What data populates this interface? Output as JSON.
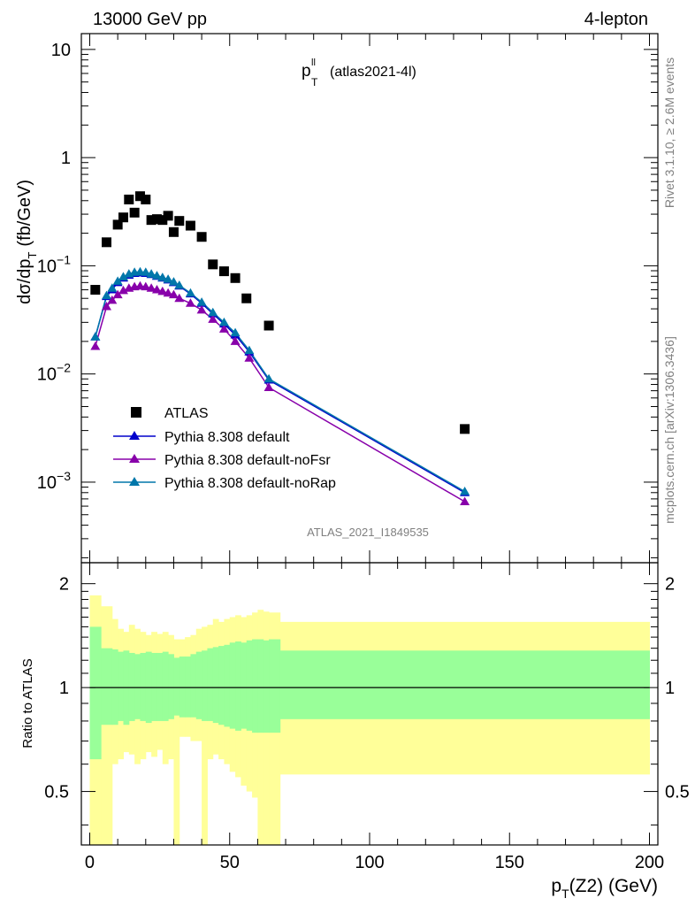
{
  "header": {
    "left": "13000 GeV pp",
    "right": "4-lepton"
  },
  "plot_title": {
    "main": "p",
    "sup": "ll",
    "sub": "T",
    "paren": "(atlas2021-4l)"
  },
  "side_text": {
    "top": "Rivet 3.1.10, ≥ 2.6M events",
    "bottom": "mcplots.cern.ch [arXiv:1306.3436]"
  },
  "watermark": "ATLAS_2021_I1849535",
  "ylabel_main": {
    "pre": "dσ/dp",
    "sub": "T",
    "post": "(fb/GeV)"
  },
  "ylabel_ratio": "Ratio to ATLAS",
  "xlabel": {
    "pre": "p",
    "sub": "T",
    "post": "(Z2) (GeV)"
  },
  "legend": {
    "items": [
      {
        "label": "ATLAS",
        "marker": "square",
        "color": "#000000"
      },
      {
        "label": "Pythia 8.308 default",
        "marker": "triangle",
        "color": "#0000cc"
      },
      {
        "label": "Pythia 8.308 default-noFsr",
        "marker": "triangle",
        "color": "#8800aa"
      },
      {
        "label": "Pythia 8.308 default-noRap",
        "marker": "triangle",
        "color": "#0077aa"
      }
    ]
  },
  "x_ticks": [
    "0",
    "50",
    "100",
    "150",
    "200"
  ],
  "y_ticks_main": [
    {
      "value": 10,
      "base": "10",
      "exp": ""
    },
    {
      "value": 1,
      "base": "1",
      "exp": ""
    },
    {
      "value": 0.1,
      "base": "10",
      "exp": "−1"
    },
    {
      "value": 0.01,
      "base": "10",
      "exp": "−2"
    },
    {
      "value": 0.001,
      "base": "10",
      "exp": "−3"
    }
  ],
  "y_ticks_ratio": [
    "2",
    "1",
    "0.5"
  ],
  "colors": {
    "band_outer": "#ffff99",
    "band_inner": "#99ff99",
    "atlas": "#000000",
    "default": "#0000cc",
    "noFsr": "#8800aa",
    "noRap": "#0077aa"
  },
  "chart_data": {
    "type": "scatter",
    "xlim": [
      -3,
      203
    ],
    "ylim_main": [
      0.00018,
      14
    ],
    "ylim_ratio": [
      0.35,
      2.3
    ],
    "x_log": false,
    "y_log_main": true,
    "y_log_ratio": true,
    "atlas_points": {
      "x": [
        2,
        6,
        10,
        12,
        14,
        16,
        18,
        20,
        22,
        24,
        26,
        28,
        30,
        32,
        36,
        40,
        44,
        48,
        52,
        56,
        64,
        134
      ],
      "y": [
        0.06,
        0.165,
        0.24,
        0.28,
        0.41,
        0.31,
        0.44,
        0.41,
        0.265,
        0.27,
        0.265,
        0.29,
        0.205,
        0.26,
        0.235,
        0.185,
        0.103,
        0.089,
        0.077,
        0.05,
        0.028,
        0.0031
      ]
    },
    "series": [
      {
        "name": "Pythia 8.308 default",
        "x": [
          2,
          6,
          8,
          10,
          12,
          14,
          16,
          18,
          20,
          22,
          24,
          26,
          28,
          30,
          32,
          36,
          40,
          44,
          48,
          52,
          57,
          64,
          134
        ],
        "y": [
          0.022,
          0.052,
          0.06,
          0.07,
          0.077,
          0.082,
          0.085,
          0.086,
          0.085,
          0.083,
          0.08,
          0.077,
          0.074,
          0.07,
          0.065,
          0.055,
          0.045,
          0.036,
          0.029,
          0.023,
          0.016,
          0.0088,
          0.0008
        ]
      },
      {
        "name": "Pythia 8.308 default-noFsr",
        "x": [
          2,
          6,
          8,
          10,
          12,
          14,
          16,
          18,
          20,
          22,
          24,
          26,
          28,
          30,
          32,
          36,
          40,
          44,
          48,
          52,
          57,
          64,
          134
        ],
        "y": [
          0.018,
          0.042,
          0.048,
          0.054,
          0.059,
          0.062,
          0.064,
          0.065,
          0.064,
          0.062,
          0.06,
          0.058,
          0.056,
          0.054,
          0.05,
          0.045,
          0.039,
          0.032,
          0.026,
          0.02,
          0.014,
          0.0075,
          0.00066
        ]
      },
      {
        "name": "Pythia 8.308 default-noRap",
        "x": [
          2,
          6,
          8,
          10,
          12,
          14,
          16,
          18,
          20,
          22,
          24,
          26,
          28,
          30,
          32,
          36,
          40,
          44,
          48,
          52,
          57,
          64,
          134
        ],
        "y": [
          0.022,
          0.053,
          0.062,
          0.072,
          0.079,
          0.084,
          0.087,
          0.088,
          0.087,
          0.084,
          0.081,
          0.078,
          0.075,
          0.071,
          0.066,
          0.056,
          0.046,
          0.037,
          0.03,
          0.024,
          0.0165,
          0.009,
          0.00082
        ]
      }
    ],
    "ratio_bands": {
      "edges": [
        0,
        4,
        8,
        10,
        12,
        14,
        16,
        18,
        20,
        22,
        24,
        26,
        28,
        30,
        32,
        34,
        36,
        38,
        40,
        42,
        44,
        46,
        48,
        50,
        52,
        54,
        56,
        58,
        60,
        62,
        64,
        68,
        200
      ],
      "outer_lo": [
        0.35,
        0.35,
        0.6,
        0.62,
        0.65,
        0.64,
        0.6,
        0.62,
        0.65,
        0.63,
        0.66,
        0.6,
        0.62,
        0.35,
        0.72,
        0.72,
        0.7,
        0.7,
        0.35,
        0.62,
        0.64,
        0.62,
        0.6,
        0.57,
        0.55,
        0.52,
        0.5,
        0.48,
        0.35,
        0.35,
        0.35,
        0.56
      ],
      "outer_hi": [
        1.85,
        1.72,
        1.58,
        1.48,
        1.45,
        1.52,
        1.48,
        1.45,
        1.42,
        1.45,
        1.43,
        1.45,
        1.42,
        1.38,
        1.38,
        1.4,
        1.42,
        1.48,
        1.5,
        1.52,
        1.58,
        1.55,
        1.58,
        1.6,
        1.62,
        1.6,
        1.62,
        1.65,
        1.68,
        1.66,
        1.65,
        1.55
      ],
      "inner_lo": [
        0.62,
        0.78,
        0.78,
        0.8,
        0.78,
        0.8,
        0.81,
        0.8,
        0.79,
        0.8,
        0.8,
        0.8,
        0.81,
        0.83,
        0.82,
        0.82,
        0.82,
        0.81,
        0.8,
        0.8,
        0.79,
        0.78,
        0.77,
        0.76,
        0.75,
        0.76,
        0.75,
        0.74,
        0.74,
        0.74,
        0.74,
        0.81
      ],
      "inner_hi": [
        1.5,
        1.3,
        1.29,
        1.27,
        1.28,
        1.26,
        1.25,
        1.26,
        1.27,
        1.26,
        1.26,
        1.27,
        1.25,
        1.22,
        1.23,
        1.23,
        1.25,
        1.27,
        1.28,
        1.3,
        1.31,
        1.32,
        1.33,
        1.35,
        1.36,
        1.35,
        1.37,
        1.38,
        1.38,
        1.37,
        1.38,
        1.28
      ]
    }
  }
}
